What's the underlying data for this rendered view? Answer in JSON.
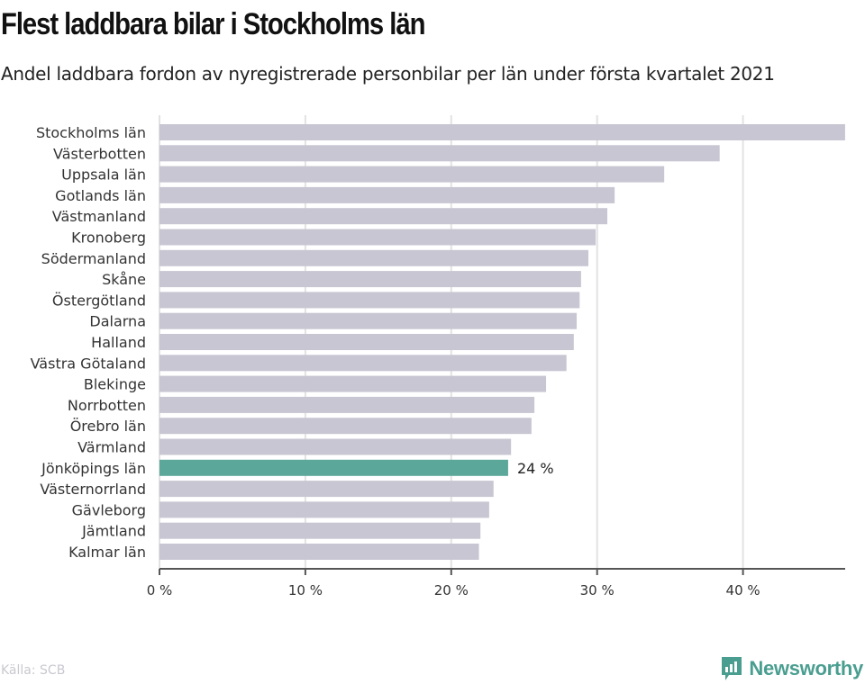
{
  "header": {
    "title": "Flest laddbara bilar i Stockholms län",
    "subtitle": "Andel laddbara fordon av nyregistrerade personbilar per län under första kvartalet 2021"
  },
  "footer": {
    "source": "Källa: SCB",
    "brand": "Newsworthy",
    "brand_icon": "newsworthy-logo-icon"
  },
  "colors": {
    "bar": "#c8c6d2",
    "highlight": "#5ba89b",
    "grid": "#e2e2e2",
    "axis": "#555555",
    "brand": "#4a9e90"
  },
  "chart_data": {
    "type": "bar",
    "orientation": "horizontal",
    "title": "Flest laddbara bilar i Stockholms län",
    "subtitle": "Andel laddbara fordon av nyregistrerade personbilar per län under första kvartalet 2021",
    "xlabel": "",
    "ylabel": "",
    "unit": "%",
    "xlim": [
      0,
      47
    ],
    "xticks": [
      0,
      10,
      20,
      30,
      40
    ],
    "xtick_labels": [
      "0 %",
      "10 %",
      "20 %",
      "30 %",
      "40 %"
    ],
    "grid": true,
    "categories": [
      "Stockholms län",
      "Västerbotten",
      "Uppsala län",
      "Gotlands län",
      "Västmanland",
      "Kronoberg",
      "Södermanland",
      "Skåne",
      "Östergötland",
      "Dalarna",
      "Halland",
      "Västra Götaland",
      "Blekinge",
      "Norrbotten",
      "Örebro län",
      "Värmland",
      "Jönköpings län",
      "Västernorrland",
      "Gävleborg",
      "Jämtland",
      "Kalmar län"
    ],
    "values": [
      47.0,
      38.4,
      34.6,
      31.2,
      30.7,
      29.9,
      29.4,
      28.9,
      28.8,
      28.6,
      28.4,
      27.9,
      26.5,
      25.7,
      25.5,
      24.1,
      23.9,
      22.9,
      22.6,
      22.0,
      21.9
    ],
    "highlight": "Jönköpings län",
    "annotations": [
      {
        "category": "Jönköpings län",
        "text": "24 %"
      }
    ]
  }
}
